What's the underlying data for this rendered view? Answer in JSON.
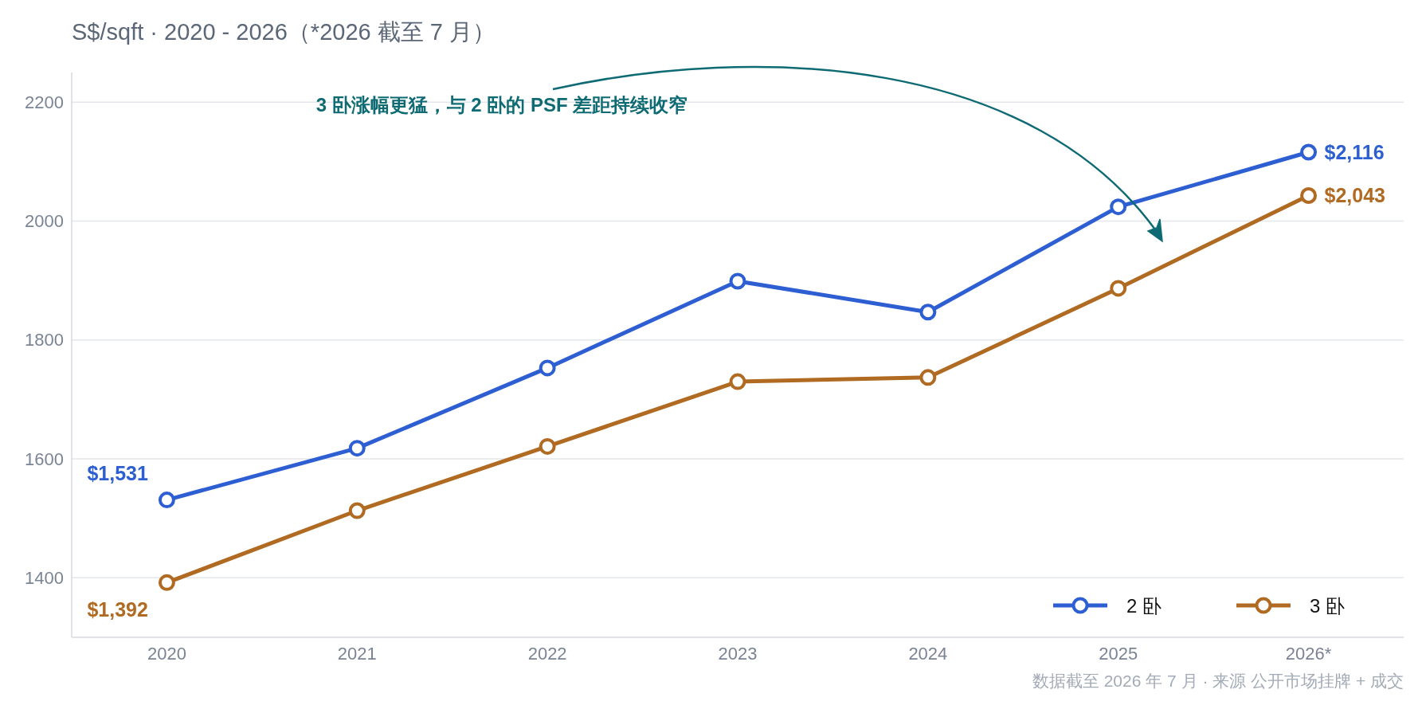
{
  "chart_data": {
    "type": "line",
    "title": "S$/sqft · 2020 - 2026（*2026 截至 7 月）",
    "categories": [
      "2020",
      "2021",
      "2022",
      "2023",
      "2024",
      "2025",
      "2026*"
    ],
    "series": [
      {
        "name": "2 卧",
        "color": "#2d5fd3",
        "values": [
          1531,
          1618,
          1753,
          1899,
          1847,
          2024,
          2116
        ],
        "value_labels": [
          "$1,531",
          null,
          null,
          null,
          null,
          null,
          "$2,116"
        ]
      },
      {
        "name": "3 卧",
        "color": "#b06a22",
        "values": [
          1392,
          1513,
          1621,
          1730,
          1737,
          1887,
          2043
        ],
        "value_labels": [
          "$1,392",
          null,
          null,
          null,
          null,
          null,
          "$2,043"
        ]
      }
    ],
    "ylim": [
      1300,
      2250
    ],
    "yticks": [
      1400,
      1600,
      1800,
      2000,
      2200
    ],
    "grid": "y",
    "legend": "bottom right",
    "marker": "circle",
    "line_style": "solid",
    "annotations": [
      "3 卧涨幅更猛，与 2 卧的 PSF 差距持续收窄",
      "数据截至 2026 年 7 月 · 来源 公开市场挂牌 + 成交"
    ]
  }
}
